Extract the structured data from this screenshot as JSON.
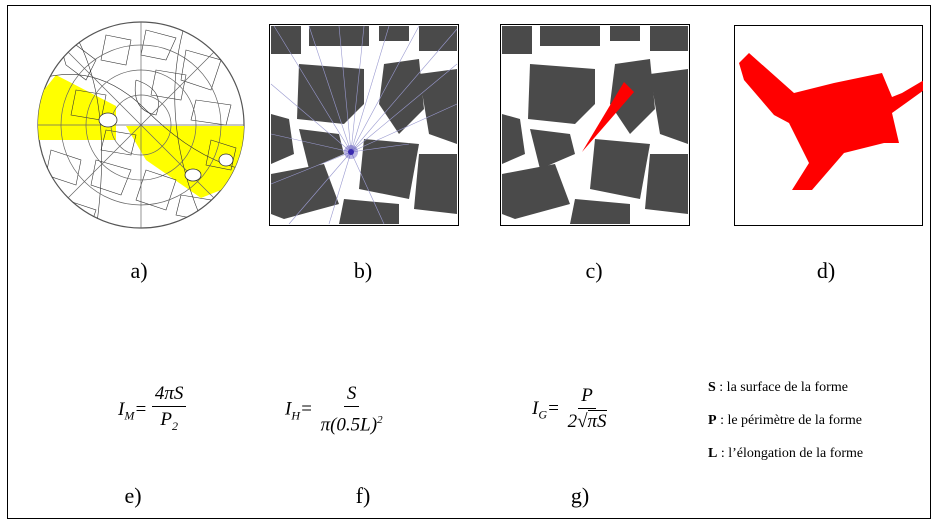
{
  "captions": {
    "a": "a)",
    "b": "b)",
    "c": "c)",
    "d": "d)",
    "e": "e)",
    "f": "f)",
    "g": "g)"
  },
  "formulas": {
    "im": {
      "lhs": "I",
      "sub": "M",
      "eq": "=",
      "num": "4πS",
      "den_main": "P",
      "den_sub": "2"
    },
    "ih": {
      "lhs": "I",
      "sub": "H",
      "eq": "=",
      "num": "S",
      "den": "π(0.5L)",
      "den_sup": "2"
    },
    "ig": {
      "lhs": "I",
      "sub": "G",
      "eq": "=",
      "num": "P",
      "den_pre": "2",
      "den_root": "πS"
    }
  },
  "legend": [
    {
      "symbol": "S",
      "text": " : la surface de la forme"
    },
    {
      "symbol": "P",
      "text": " : le périmètre de la forme"
    },
    {
      "symbol": "L",
      "text": " : l’élongation de la forme"
    }
  ],
  "colors": {
    "highlight": "#ffff00",
    "building": "#4a4a4a",
    "shape": "#ff0000",
    "view_point": "#3a2ab0"
  }
}
